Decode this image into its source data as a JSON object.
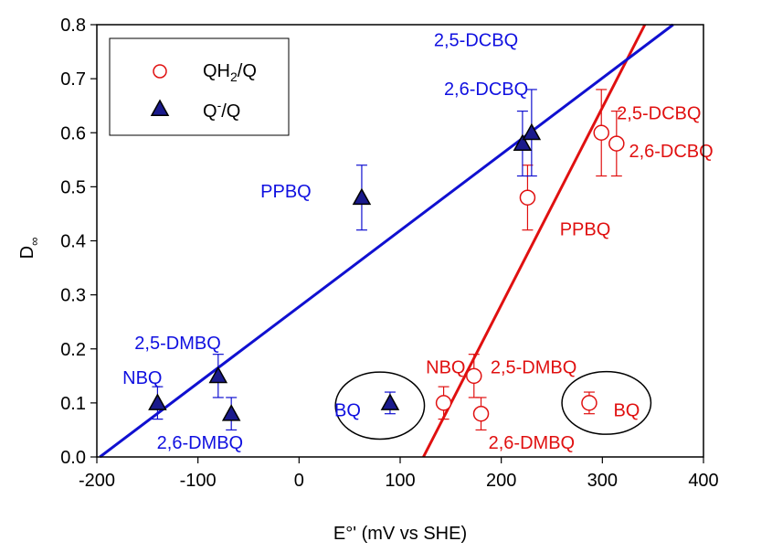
{
  "chart_data": {
    "type": "scatter",
    "xlabel": "E°' (mV vs SHE)",
    "ylabel": "D",
    "ylabel_subscript": "∞",
    "xlim": [
      -200,
      400
    ],
    "ylim": [
      0.0,
      0.8
    ],
    "x_ticks": [
      "-200",
      "-100",
      "0",
      "100",
      "200",
      "300",
      "400"
    ],
    "y_ticks": [
      "0.0",
      "0.1",
      "0.2",
      "0.3",
      "0.4",
      "0.5",
      "0.6",
      "0.7",
      "0.8"
    ],
    "legend_position": "top-left",
    "series": [
      {
        "name": "QH2/Q",
        "legend_main": "QH",
        "legend_sub": "2",
        "legend_tail": "/Q",
        "marker": "open-circle",
        "color": "#e01010",
        "points": [
          {
            "label": "NBQ",
            "x": 143,
            "y": 0.1,
            "err": 0.03
          },
          {
            "label": "2,5-DMBQ",
            "x": 173,
            "y": 0.15,
            "err": 0.04
          },
          {
            "label": "2,6-DMBQ",
            "x": 180,
            "y": 0.08,
            "err": 0.03
          },
          {
            "label": "PPBQ",
            "x": 226,
            "y": 0.48,
            "err": 0.06
          },
          {
            "label": "BQ",
            "x": 287,
            "y": 0.1,
            "err": 0.02
          },
          {
            "label": "2,5-DCBQ",
            "x": 299,
            "y": 0.6,
            "err": 0.08
          },
          {
            "label": "2,6-DCBQ",
            "x": 314,
            "y": 0.58,
            "err": 0.06
          }
        ],
        "fit_line": {
          "x": [
            123,
            342
          ],
          "y": [
            0.0,
            0.8
          ]
        }
      },
      {
        "name": "Q-/Q",
        "legend_main": "Q",
        "legend_sup": "-",
        "legend_tail": "/Q",
        "marker": "filled-triangle",
        "color": "#1a1a8c",
        "points": [
          {
            "label": "NBQ",
            "x": -140,
            "y": 0.1,
            "err": 0.03
          },
          {
            "label": "2,5-DMBQ",
            "x": -80,
            "y": 0.15,
            "err": 0.04
          },
          {
            "label": "2,6-DMBQ",
            "x": -67,
            "y": 0.08,
            "err": 0.03
          },
          {
            "label": "PPBQ",
            "x": 62,
            "y": 0.48,
            "err": 0.06
          },
          {
            "label": "BQ",
            "x": 90,
            "y": 0.1,
            "err": 0.02
          },
          {
            "label": "2,5-DCBQ",
            "x": 221,
            "y": 0.58,
            "err": 0.06
          },
          {
            "label": "2,6-DCBQ",
            "x": 230,
            "y": 0.6,
            "err": 0.08
          }
        ],
        "fit_line": {
          "x": [
            -197,
            370
          ],
          "y": [
            0.0,
            0.8
          ]
        }
      }
    ],
    "annotations_blue": [
      {
        "text": "2,5-DCBQ",
        "x": 175,
        "y": 0.76
      },
      {
        "text": "2,6-DCBQ",
        "x": 185,
        "y": 0.67
      },
      {
        "text": "PPBQ",
        "x": -13,
        "y": 0.48
      },
      {
        "text": "2,5-DMBQ",
        "x": -120,
        "y": 0.2
      },
      {
        "text": "NBQ",
        "x": -155,
        "y": 0.135
      },
      {
        "text": "BQ",
        "x": 48,
        "y": 0.075
      },
      {
        "text": "2,6-DMBQ",
        "x": -98,
        "y": 0.015
      }
    ],
    "annotations_red": [
      {
        "text": "2,5-DCBQ",
        "x": 356,
        "y": 0.625
      },
      {
        "text": "2,6-DCBQ",
        "x": 368,
        "y": 0.555
      },
      {
        "text": "PPBQ",
        "x": 283,
        "y": 0.41
      },
      {
        "text": "NBQ",
        "x": 145,
        "y": 0.155
      },
      {
        "text": "2,5-DMBQ",
        "x": 232,
        "y": 0.155
      },
      {
        "text": "BQ",
        "x": 324,
        "y": 0.075
      },
      {
        "text": "2,6-DMBQ",
        "x": 230,
        "y": 0.015
      }
    ],
    "circled_labels": [
      {
        "cx": 80,
        "cy": 0.095,
        "rx": 44,
        "ry": 0.062
      },
      {
        "cx": 304,
        "cy": 0.1,
        "rx": 44,
        "ry": 0.058
      }
    ]
  }
}
